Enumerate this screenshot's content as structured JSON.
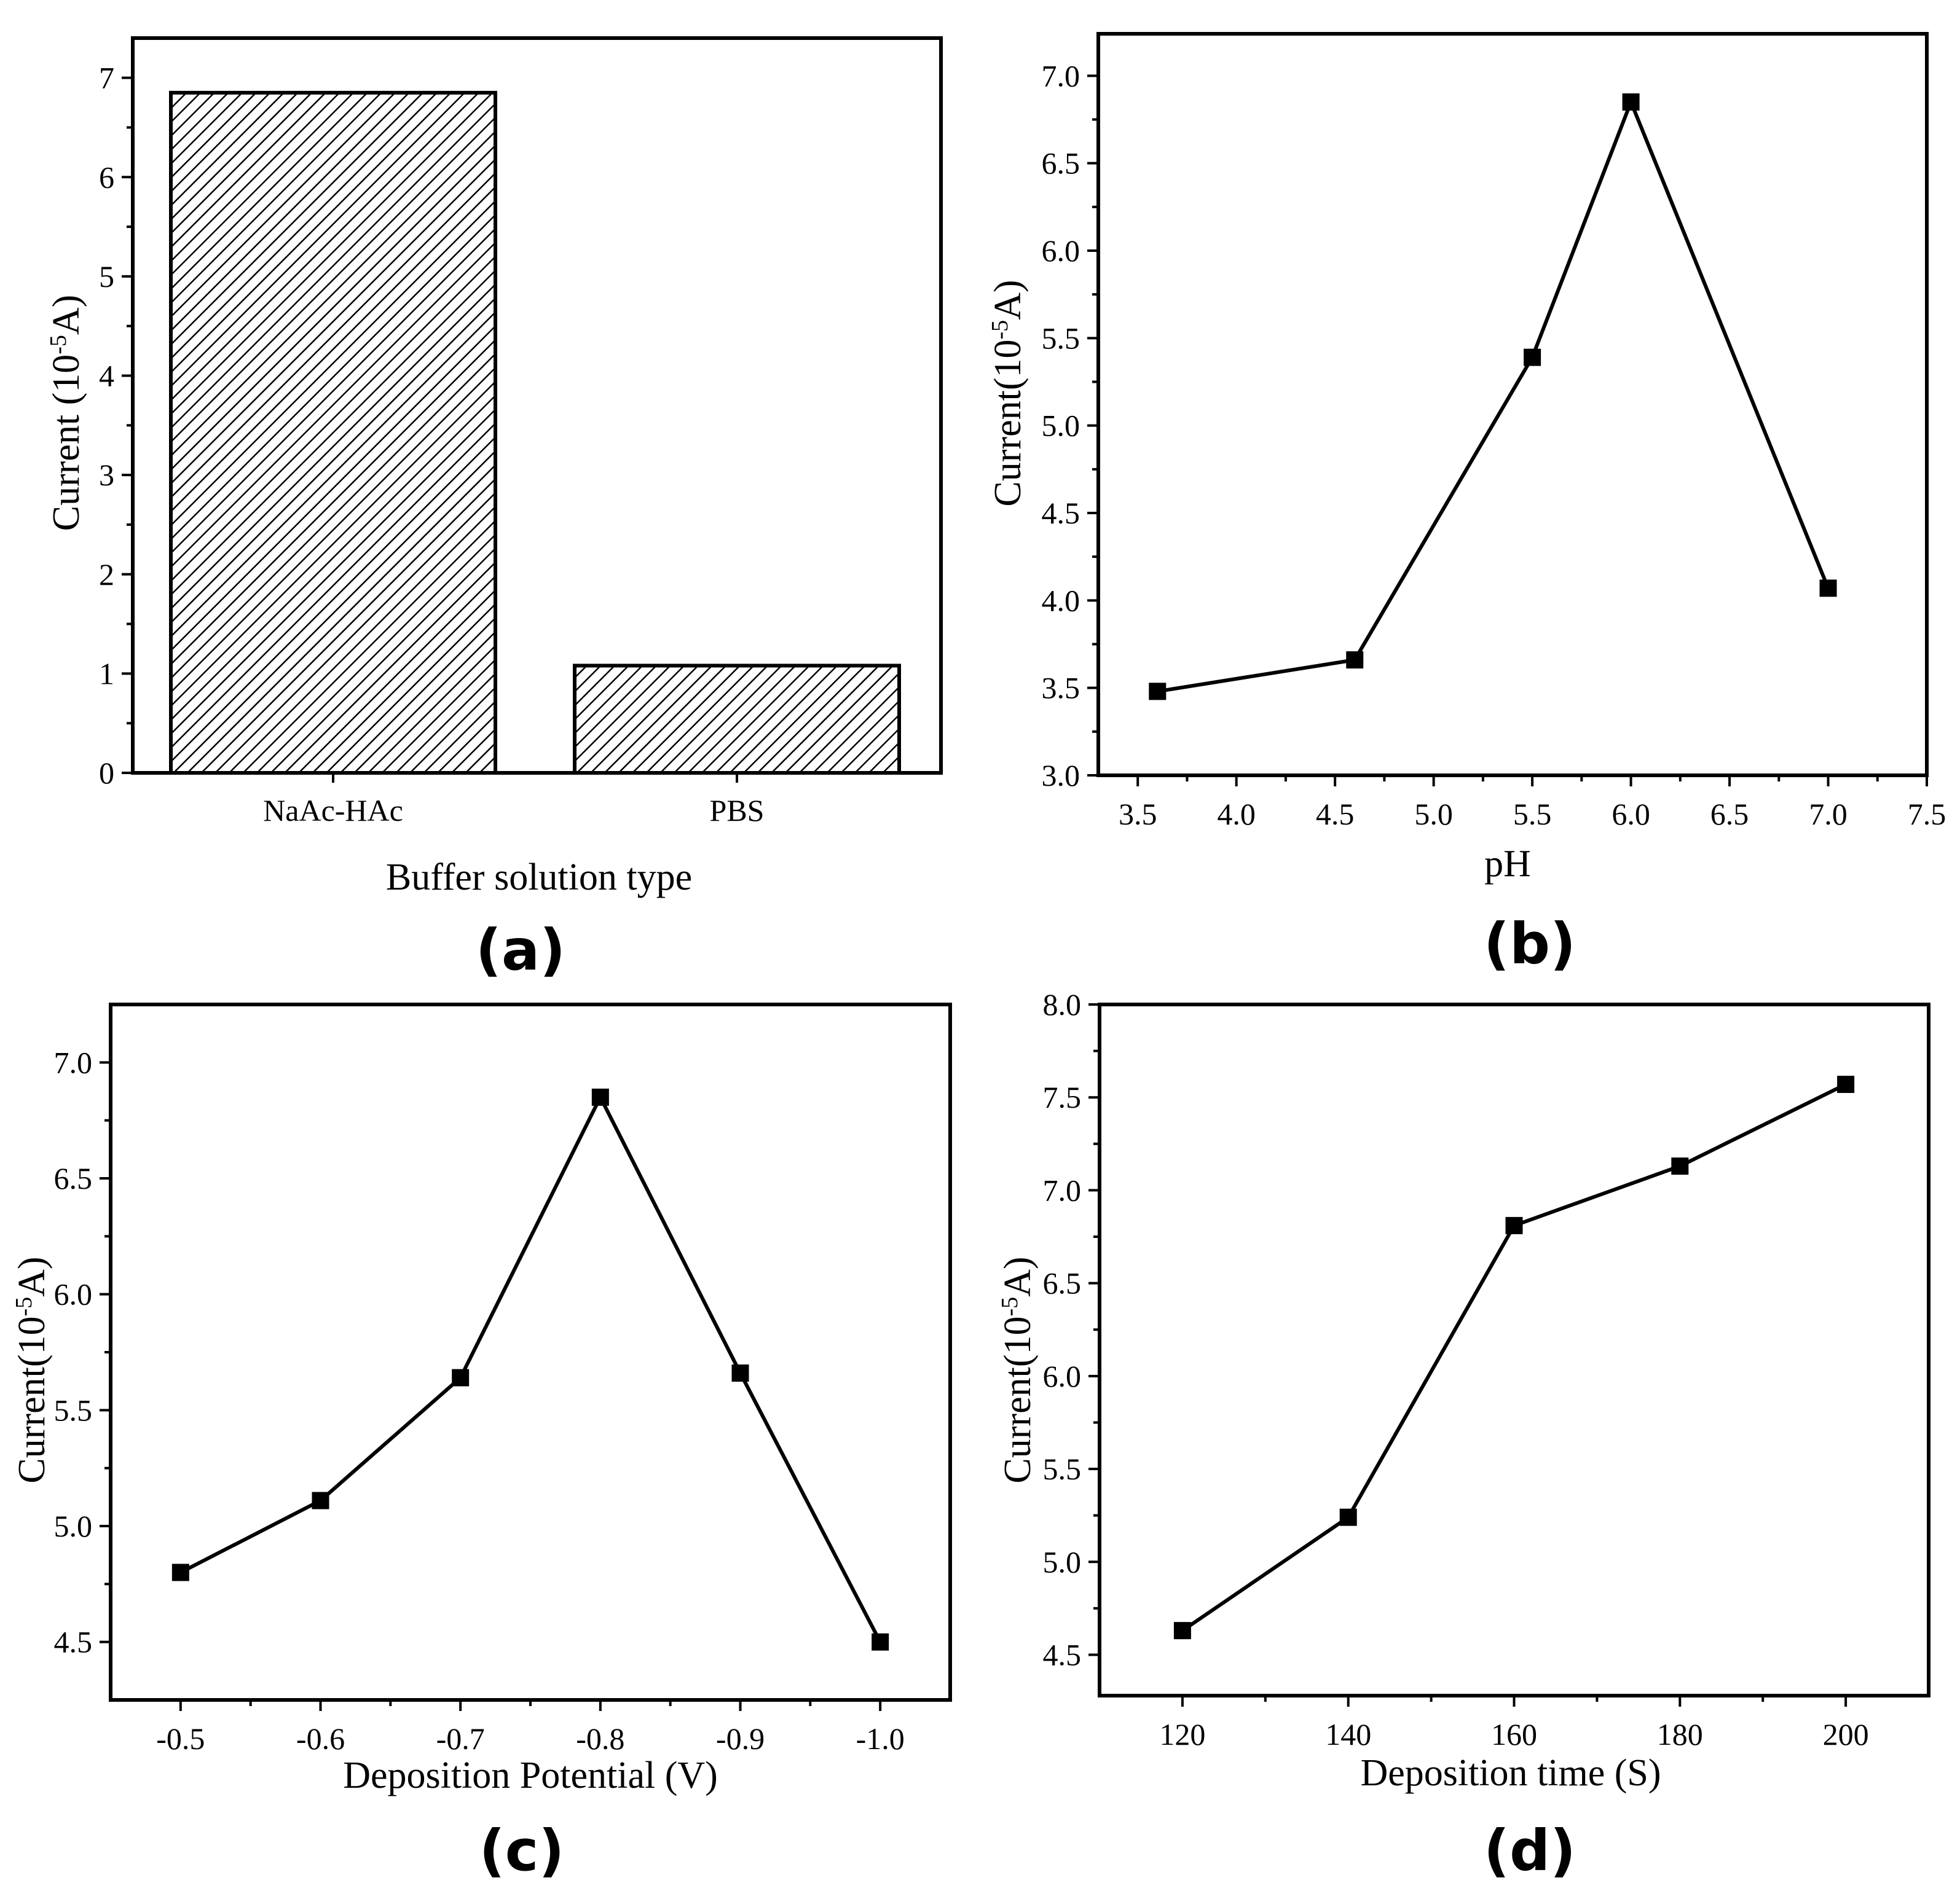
{
  "chart_data": [
    {
      "panel": "(a)",
      "type": "bar",
      "categories": [
        "NaAc-HAc",
        "PBS"
      ],
      "values": [
        6.85,
        1.08
      ],
      "xlabel": "Buffer solution type",
      "ylabel": {
        "prefix": "Current (10",
        "sup": "-5",
        "suffix": "A)"
      },
      "ylim": [
        0,
        7.4
      ],
      "yticks": [
        {
          "v": 0,
          "label": "0"
        },
        {
          "v": 1,
          "label": "1"
        },
        {
          "v": 2,
          "label": "2"
        },
        {
          "v": 3,
          "label": "3"
        },
        {
          "v": 4,
          "label": "4"
        },
        {
          "v": 5,
          "label": "5"
        },
        {
          "v": 6,
          "label": "6"
        },
        {
          "v": 7,
          "label": "7"
        }
      ]
    },
    {
      "panel": "(b)",
      "type": "line",
      "x": [
        3.6,
        4.6,
        5.5,
        6.0,
        7.0
      ],
      "y": [
        3.48,
        3.66,
        5.39,
        6.85,
        4.07
      ],
      "xlabel": "pH",
      "ylabel": {
        "prefix": "Current(10",
        "sup": "-5",
        "suffix": "A)"
      },
      "xlim": [
        3.3,
        7.5
      ],
      "ylim": [
        3.0,
        7.24
      ],
      "xticks": [
        {
          "v": 3.5,
          "label": "3.5"
        },
        {
          "v": 4.0,
          "label": "4.0"
        },
        {
          "v": 4.5,
          "label": "4.5"
        },
        {
          "v": 5.0,
          "label": "5.0"
        },
        {
          "v": 5.5,
          "label": "5.5"
        },
        {
          "v": 6.0,
          "label": "6.0"
        },
        {
          "v": 6.5,
          "label": "6.5"
        },
        {
          "v": 7.0,
          "label": "7.0"
        },
        {
          "v": 7.5,
          "label": "7.5"
        }
      ],
      "yticks": [
        {
          "v": 3.0,
          "label": "3.0"
        },
        {
          "v": 3.5,
          "label": "3.5"
        },
        {
          "v": 4.0,
          "label": "4.0"
        },
        {
          "v": 4.5,
          "label": "4.5"
        },
        {
          "v": 5.0,
          "label": "5.0"
        },
        {
          "v": 5.5,
          "label": "5.5"
        },
        {
          "v": 6.0,
          "label": "6.0"
        },
        {
          "v": 6.5,
          "label": "6.5"
        },
        {
          "v": 7.0,
          "label": "7.0"
        }
      ]
    },
    {
      "panel": "(c)",
      "type": "line",
      "x": [
        -0.5,
        -0.6,
        -0.7,
        -0.8,
        -0.9,
        -1.0
      ],
      "y": [
        4.8,
        5.11,
        5.64,
        6.85,
        5.66,
        4.5
      ],
      "xlabel": "Deposition Potential (V)",
      "ylabel": {
        "prefix": "Current(10",
        "sup": "-5",
        "suffix": "A)"
      },
      "xlim": [
        -0.45,
        -1.05
      ],
      "ylim": [
        4.25,
        7.25
      ],
      "xticks": [
        {
          "v": -0.5,
          "label": "-0.5"
        },
        {
          "v": -0.6,
          "label": "-0.6"
        },
        {
          "v": -0.7,
          "label": "-0.7"
        },
        {
          "v": -0.8,
          "label": "-0.8"
        },
        {
          "v": -0.9,
          "label": "-0.9"
        },
        {
          "v": -1.0,
          "label": "-1.0"
        }
      ],
      "yticks": [
        {
          "v": 4.5,
          "label": "4.5"
        },
        {
          "v": 5.0,
          "label": "5.0"
        },
        {
          "v": 5.5,
          "label": "5.5"
        },
        {
          "v": 6.0,
          "label": "6.0"
        },
        {
          "v": 6.5,
          "label": "6.5"
        },
        {
          "v": 7.0,
          "label": "7.0"
        }
      ]
    },
    {
      "panel": "(d)",
      "type": "line",
      "x": [
        120,
        140,
        160,
        180,
        200
      ],
      "y": [
        4.63,
        5.24,
        6.81,
        7.13,
        7.57
      ],
      "xlabel": "Deposition time (S)",
      "ylabel": {
        "prefix": "Current(10",
        "sup": "-5",
        "suffix": "A)"
      },
      "xlim": [
        110,
        210
      ],
      "ylim": [
        4.28,
        8.0
      ],
      "xticks": [
        {
          "v": 120,
          "label": "120"
        },
        {
          "v": 140,
          "label": "140"
        },
        {
          "v": 160,
          "label": "160"
        },
        {
          "v": 180,
          "label": "180"
        },
        {
          "v": 200,
          "label": "200"
        }
      ],
      "yticks": [
        {
          "v": 4.5,
          "label": "4.5"
        },
        {
          "v": 5.0,
          "label": "5.0"
        },
        {
          "v": 5.5,
          "label": "5.5"
        },
        {
          "v": 6.0,
          "label": "6.0"
        },
        {
          "v": 6.5,
          "label": "6.5"
        },
        {
          "v": 7.0,
          "label": "7.0"
        },
        {
          "v": 7.5,
          "label": "7.5"
        },
        {
          "v": 8.0,
          "label": "8.0"
        }
      ]
    }
  ]
}
